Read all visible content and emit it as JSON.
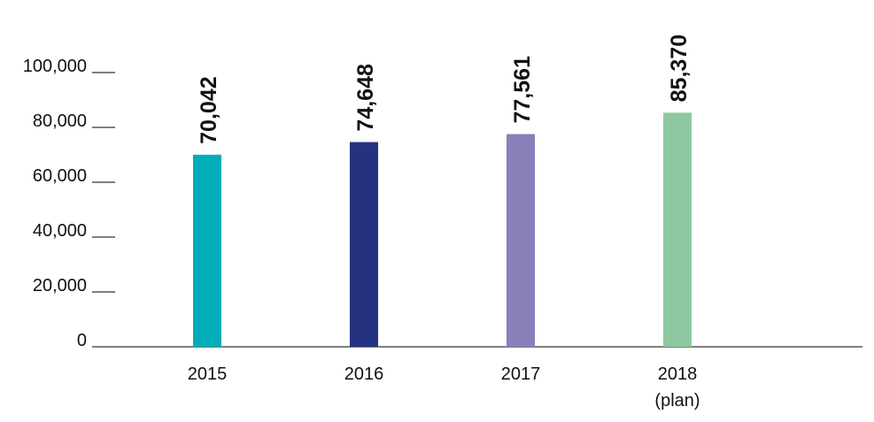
{
  "chart_data": {
    "type": "bar",
    "title": "",
    "xlabel": "",
    "ylabel": "",
    "categories": [
      "2015",
      "2016",
      "2017",
      "2018"
    ],
    "category_sublabels": [
      "",
      "",
      "",
      "(plan)"
    ],
    "values": [
      70042,
      74648,
      77561,
      85370
    ],
    "value_labels": [
      "70,042",
      "74,648",
      "77,561",
      "85,370"
    ],
    "bar_colors": [
      "#00adb9",
      "#25327f",
      "#8b7fba",
      "#8dc8a1"
    ],
    "ylim": [
      0,
      100000
    ],
    "yticks": [
      0,
      20000,
      40000,
      60000,
      80000,
      100000
    ],
    "ytick_labels": [
      "0",
      "20,000",
      "40,000",
      "60,000",
      "80,000",
      "100,000"
    ],
    "grid": false,
    "legend": "none"
  }
}
